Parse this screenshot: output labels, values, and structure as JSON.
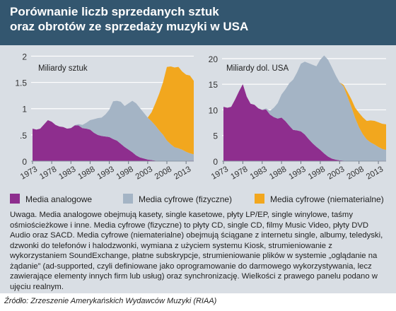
{
  "header": {
    "title_line1": "Porównanie liczb sprzedanych sztuk",
    "title_line2": "oraz obrotów ze sprzedaży muzyki w USA"
  },
  "colors": {
    "analog": "#8e2e8e",
    "physical": "#a4b4c5",
    "digital": "#f2a71e",
    "header": "#33566f",
    "panel": "#d9dee4"
  },
  "legend": {
    "analog": "Media analogowe",
    "physical": "Media cyfrowe (fizyczne)",
    "digital": "Media cyfrowe (niematerialne)"
  },
  "note": "Uwaga. Media analogowe obejmują kasety, single kasetowe, płyty LP/EP, single winylowe, taśmy ośmiościeżkowe i inne. Media cyfrowe (fizyczne) to płyty CD, single CD, filmy Music Video, płyty DVD Audio oraz SACD. Media cyfrowe (niematerialne) obejmują ściągane z internetu single, albumy, teledyski, dzwonki do telefonów i halodzwonki, wymiana z użyciem systemu Kiosk, strumieniowanie z wykorzystaniem SoundExchange, płatne subskrypcje, strumieniowanie plików w systemie „oglądanie na żądanie” (ad-supported, czyli definiowane jako oprogramowanie do darmowego wykorzystywania, lecz zawierające elementy innych firm lub usług) oraz synchronizację. Wielkości z prawego panelu podano w ujęciu realnym.",
  "source": "Źródło: Zrzeszenie Amerykańskich Wydawców Muzyki (RIAA)",
  "chart_data": [
    {
      "type": "area",
      "stacked": true,
      "ylabel": "Miliardy sztuk",
      "ylim": [
        0,
        2.1
      ],
      "yticks": [
        0,
        0.5,
        1,
        1.5,
        2
      ],
      "ytick_labels": [
        "0",
        ".5",
        "1",
        "1.5",
        "2"
      ],
      "xlim": [
        1973,
        2015
      ],
      "xticks": [
        1973,
        1978,
        1983,
        1988,
        1993,
        1998,
        2003,
        2008,
        2013
      ],
      "grid": true,
      "series": [
        {
          "key": "analog",
          "name": "Media analogowe",
          "points": [
            [
              1973,
              0.62
            ],
            [
              1974,
              0.6
            ],
            [
              1975,
              0.62
            ],
            [
              1976,
              0.7
            ],
            [
              1977,
              0.78
            ],
            [
              1978,
              0.75
            ],
            [
              1979,
              0.69
            ],
            [
              1980,
              0.66
            ],
            [
              1981,
              0.65
            ],
            [
              1982,
              0.62
            ],
            [
              1983,
              0.63
            ],
            [
              1984,
              0.68
            ],
            [
              1985,
              0.68
            ],
            [
              1986,
              0.63
            ],
            [
              1987,
              0.62
            ],
            [
              1988,
              0.6
            ],
            [
              1989,
              0.54
            ],
            [
              1990,
              0.5
            ],
            [
              1991,
              0.48
            ],
            [
              1992,
              0.47
            ],
            [
              1993,
              0.46
            ],
            [
              1994,
              0.42
            ],
            [
              1995,
              0.39
            ],
            [
              1996,
              0.33
            ],
            [
              1997,
              0.27
            ],
            [
              1998,
              0.22
            ],
            [
              1999,
              0.17
            ],
            [
              2000,
              0.11
            ],
            [
              2001,
              0.07
            ],
            [
              2002,
              0.05
            ],
            [
              2003,
              0.03
            ],
            [
              2004,
              0.02
            ],
            [
              2005,
              0.01
            ],
            [
              2006,
              0.005
            ],
            [
              2007,
              0.003
            ],
            [
              2008,
              0.003
            ],
            [
              2009,
              0.003
            ],
            [
              2010,
              0.004
            ],
            [
              2011,
              0.005
            ],
            [
              2012,
              0.007
            ],
            [
              2013,
              0.008
            ],
            [
              2014,
              0.01
            ],
            [
              2015,
              0.01
            ]
          ]
        },
        {
          "key": "physical",
          "name": "Media cyfrowe (fizyczne)",
          "points": [
            [
              1973,
              0
            ],
            [
              1982,
              0
            ],
            [
              1983,
              0.001
            ],
            [
              1984,
              0.006
            ],
            [
              1985,
              0.025
            ],
            [
              1986,
              0.06
            ],
            [
              1987,
              0.11
            ],
            [
              1988,
              0.18
            ],
            [
              1989,
              0.26
            ],
            [
              1990,
              0.32
            ],
            [
              1991,
              0.35
            ],
            [
              1992,
              0.42
            ],
            [
              1993,
              0.52
            ],
            [
              1994,
              0.72
            ],
            [
              1995,
              0.76
            ],
            [
              1996,
              0.8
            ],
            [
              1997,
              0.78
            ],
            [
              1998,
              0.88
            ],
            [
              1999,
              0.98
            ],
            [
              2000,
              0.99
            ],
            [
              2001,
              0.94
            ],
            [
              2002,
              0.87
            ],
            [
              2003,
              0.8
            ],
            [
              2004,
              0.74
            ],
            [
              2005,
              0.67
            ],
            [
              2006,
              0.58
            ],
            [
              2007,
              0.5
            ],
            [
              2008,
              0.39
            ],
            [
              2009,
              0.32
            ],
            [
              2010,
              0.26
            ],
            [
              2011,
              0.24
            ],
            [
              2012,
              0.21
            ],
            [
              2013,
              0.17
            ],
            [
              2014,
              0.14
            ],
            [
              2015,
              0.12
            ]
          ]
        },
        {
          "key": "digital",
          "name": "Media cyfrowe (niematerialne)",
          "points": [
            [
              1973,
              0
            ],
            [
              2003,
              0
            ],
            [
              2004,
              0.17
            ],
            [
              2005,
              0.42
            ],
            [
              2006,
              0.7
            ],
            [
              2007,
              1.0
            ],
            [
              2008,
              1.4
            ],
            [
              2009,
              1.48
            ],
            [
              2010,
              1.52
            ],
            [
              2011,
              1.55
            ],
            [
              2012,
              1.49
            ],
            [
              2013,
              1.47
            ],
            [
              2014,
              1.48
            ],
            [
              2015,
              1.4
            ]
          ]
        }
      ]
    },
    {
      "type": "area",
      "stacked": true,
      "ylabel": "Miliardy dol. USA",
      "ylim": [
        0,
        21.5
      ],
      "yticks": [
        0,
        5,
        10,
        15,
        20
      ],
      "ytick_labels": [
        "0",
        "5",
        "10",
        "15",
        "20"
      ],
      "xlim": [
        1973,
        2015
      ],
      "xticks": [
        1973,
        1978,
        1983,
        1988,
        1993,
        1998,
        2003,
        2008,
        2013
      ],
      "grid": true,
      "series": [
        {
          "key": "analog",
          "name": "Media analogowe",
          "points": [
            [
              1973,
              10.6
            ],
            [
              1974,
              10.4
            ],
            [
              1975,
              10.6
            ],
            [
              1976,
              12.0
            ],
            [
              1977,
              13.6
            ],
            [
              1978,
              15.0
            ],
            [
              1979,
              12.6
            ],
            [
              1980,
              11.2
            ],
            [
              1981,
              11.0
            ],
            [
              1982,
              10.3
            ],
            [
              1983,
              10.0
            ],
            [
              1984,
              10.1
            ],
            [
              1985,
              9.1
            ],
            [
              1986,
              8.6
            ],
            [
              1987,
              8.3
            ],
            [
              1988,
              8.5
            ],
            [
              1989,
              7.8
            ],
            [
              1990,
              6.9
            ],
            [
              1991,
              6.1
            ],
            [
              1992,
              6.0
            ],
            [
              1993,
              5.8
            ],
            [
              1994,
              5.2
            ],
            [
              1995,
              4.3
            ],
            [
              1996,
              3.5
            ],
            [
              1997,
              2.8
            ],
            [
              1998,
              2.2
            ],
            [
              1999,
              1.5
            ],
            [
              2000,
              0.9
            ],
            [
              2001,
              0.5
            ],
            [
              2002,
              0.3
            ],
            [
              2003,
              0.15
            ],
            [
              2004,
              0.1
            ],
            [
              2005,
              0.05
            ],
            [
              2006,
              0.03
            ],
            [
              2007,
              0.02
            ],
            [
              2008,
              0.02
            ],
            [
              2009,
              0.03
            ],
            [
              2010,
              0.04
            ],
            [
              2011,
              0.05
            ],
            [
              2012,
              0.06
            ],
            [
              2013,
              0.08
            ],
            [
              2014,
              0.08
            ],
            [
              2015,
              0.08
            ]
          ]
        },
        {
          "key": "physical",
          "name": "Media cyfrowe (fizyczne)",
          "points": [
            [
              1973,
              0
            ],
            [
              1982,
              0
            ],
            [
              1983,
              0.02
            ],
            [
              1984,
              0.2
            ],
            [
              1985,
              0.7
            ],
            [
              1986,
              1.8
            ],
            [
              1987,
              3.0
            ],
            [
              1988,
              4.5
            ],
            [
              1989,
              6.2
            ],
            [
              1990,
              8.3
            ],
            [
              1991,
              9.8
            ],
            [
              1992,
              11.3
            ],
            [
              1993,
              13.2
            ],
            [
              1994,
              14.2
            ],
            [
              1995,
              14.8
            ],
            [
              1996,
              15.3
            ],
            [
              1997,
              15.7
            ],
            [
              1998,
              17.6
            ],
            [
              1999,
              19.1
            ],
            [
              2000,
              18.9
            ],
            [
              2001,
              17.8
            ],
            [
              2002,
              16.4
            ],
            [
              2003,
              15.2
            ],
            [
              2004,
              14.5
            ],
            [
              2005,
              12.6
            ],
            [
              2006,
              10.6
            ],
            [
              2007,
              8.4
            ],
            [
              2008,
              6.6
            ],
            [
              2009,
              5.2
            ],
            [
              2010,
              4.2
            ],
            [
              2011,
              3.6
            ],
            [
              2012,
              3.2
            ],
            [
              2013,
              2.7
            ],
            [
              2014,
              2.3
            ],
            [
              2015,
              2.1
            ]
          ]
        },
        {
          "key": "digital",
          "name": "Media cyfrowe (niematerialne)",
          "points": [
            [
              1973,
              0
            ],
            [
              2003,
              0
            ],
            [
              2004,
              0.3
            ],
            [
              2005,
              0.9
            ],
            [
              2006,
              1.5
            ],
            [
              2007,
              2.0
            ],
            [
              2008,
              2.8
            ],
            [
              2009,
              3.3
            ],
            [
              2010,
              3.6
            ],
            [
              2011,
              4.3
            ],
            [
              2012,
              4.6
            ],
            [
              2013,
              4.8
            ],
            [
              2014,
              4.9
            ],
            [
              2015,
              5.0
            ]
          ]
        }
      ]
    }
  ]
}
